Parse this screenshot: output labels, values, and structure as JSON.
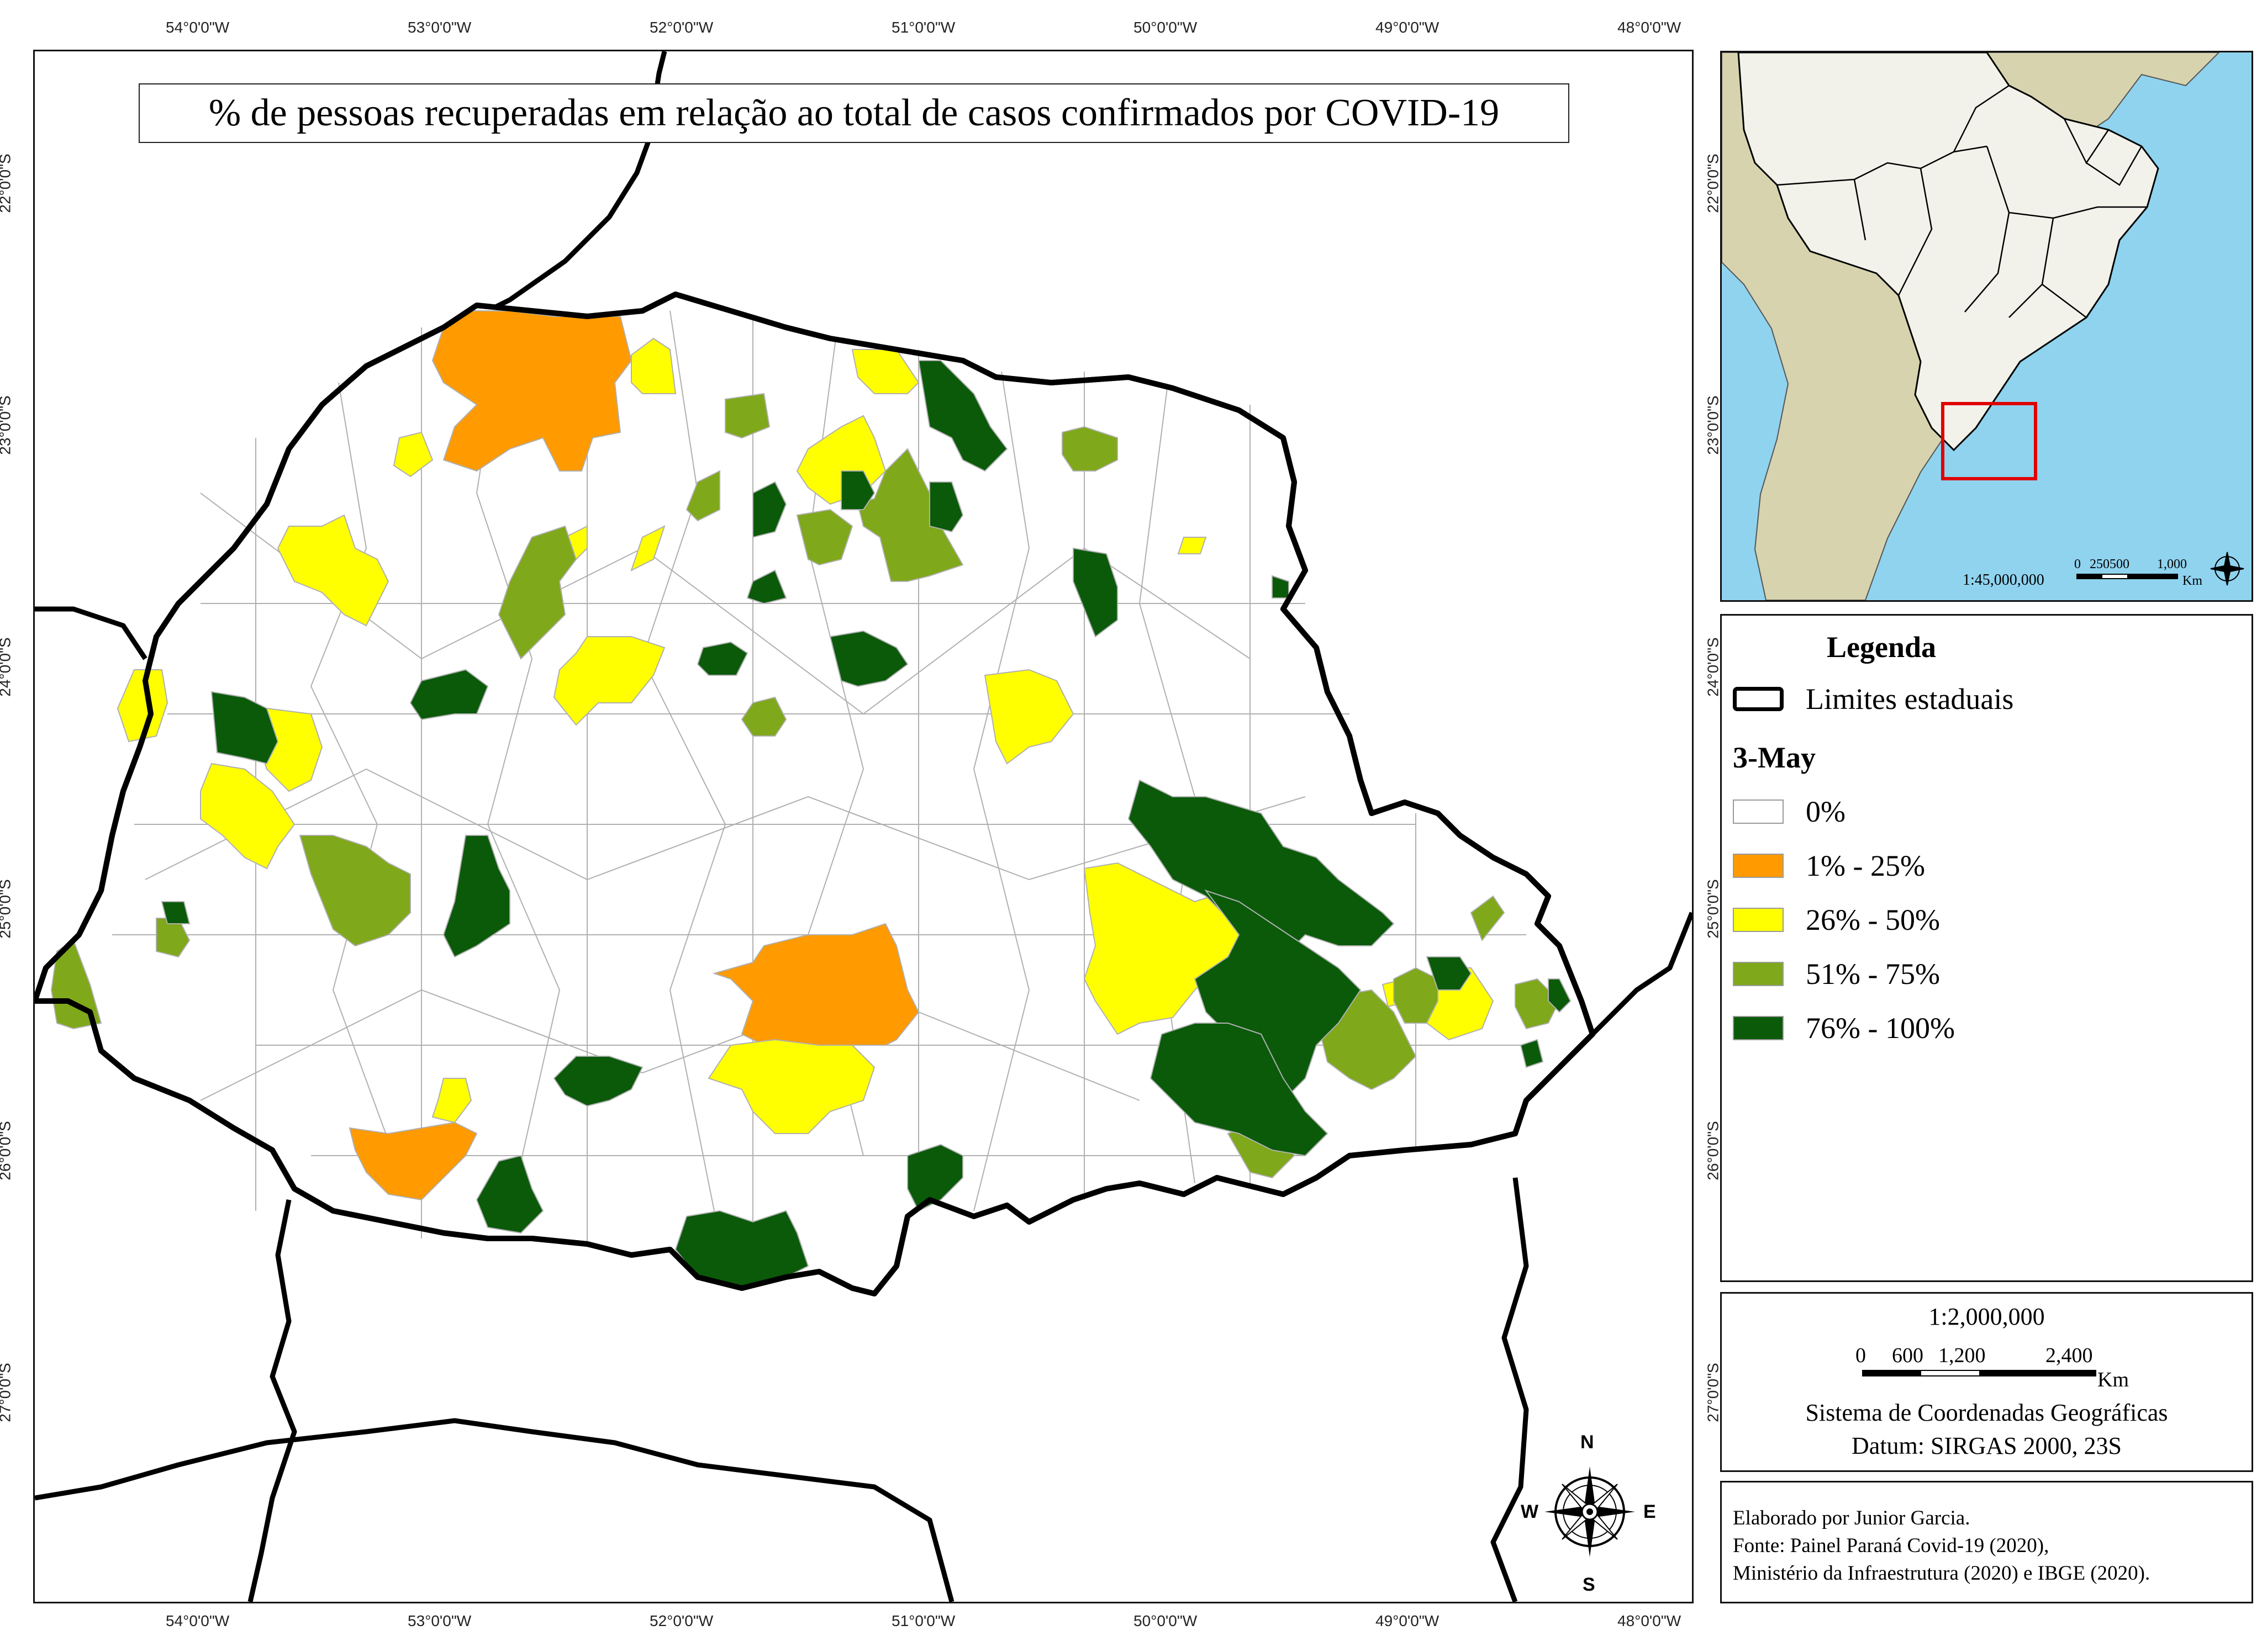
{
  "map": {
    "title": "% de pessoas recuperadas em relação ao total de casos confirmados por COVID-19",
    "lon_ticks": [
      "54°0'0\"W",
      "53°0'0\"W",
      "52°0'0\"W",
      "51°0'0\"W",
      "50°0'0\"W",
      "49°0'0\"W",
      "48°0'0\"W"
    ],
    "lat_ticks": [
      "22°0'0\"S",
      "23°0'0\"S",
      "24°0'0\"S",
      "25°0'0\"S",
      "26°0'0\"S",
      "27°0'0\"S"
    ],
    "colors": {
      "class_0": "#ffffff",
      "class_1": "#ff9a00",
      "class_2": "#ffff00",
      "class_3": "#7fa81a",
      "class_4": "#0a5a0a",
      "municipal_border": "#b0b0b0",
      "state_border": "#000000"
    }
  },
  "compass": {
    "north": "N",
    "south": "S",
    "east": "E",
    "west": "W"
  },
  "inset": {
    "scale_ratio": "1:45,000,000",
    "scale_labels": [
      "0",
      "250500",
      "1,000"
    ],
    "scale_unit": "Km",
    "colors": {
      "ocean": "#8fd3ef",
      "brazil": "#f2f2ea",
      "south_america": "#d6d3ae",
      "highlight": "#e00000"
    }
  },
  "legend": {
    "title": "Legenda",
    "state_limits_label": "Limites estaduais",
    "date_label": "3-May",
    "classes": [
      {
        "label": "0%",
        "color": "#ffffff"
      },
      {
        "label": "1% - 25%",
        "color": "#ff9a00"
      },
      {
        "label": "26% - 50%",
        "color": "#ffff00"
      },
      {
        "label": "51% - 75%",
        "color": "#7fa81a"
      },
      {
        "label": "76% - 100%",
        "color": "#0a5a0a"
      }
    ]
  },
  "scale_box": {
    "ratio": "1:2,000,000",
    "bar_labels": [
      "0",
      "600",
      "1,200",
      "2,400"
    ],
    "unit": "Km",
    "coord_system": "Sistema de Coordenadas Geográficas",
    "datum": "Datum: SIRGAS 2000, 23S"
  },
  "credits": {
    "author": "Elaborado por Junior Garcia.",
    "source_1": "Fonte: Painel Paraná Covid-19 (2020),",
    "source_2": "Ministério da Infraestrutura (2020) e IBGE (2020)."
  }
}
